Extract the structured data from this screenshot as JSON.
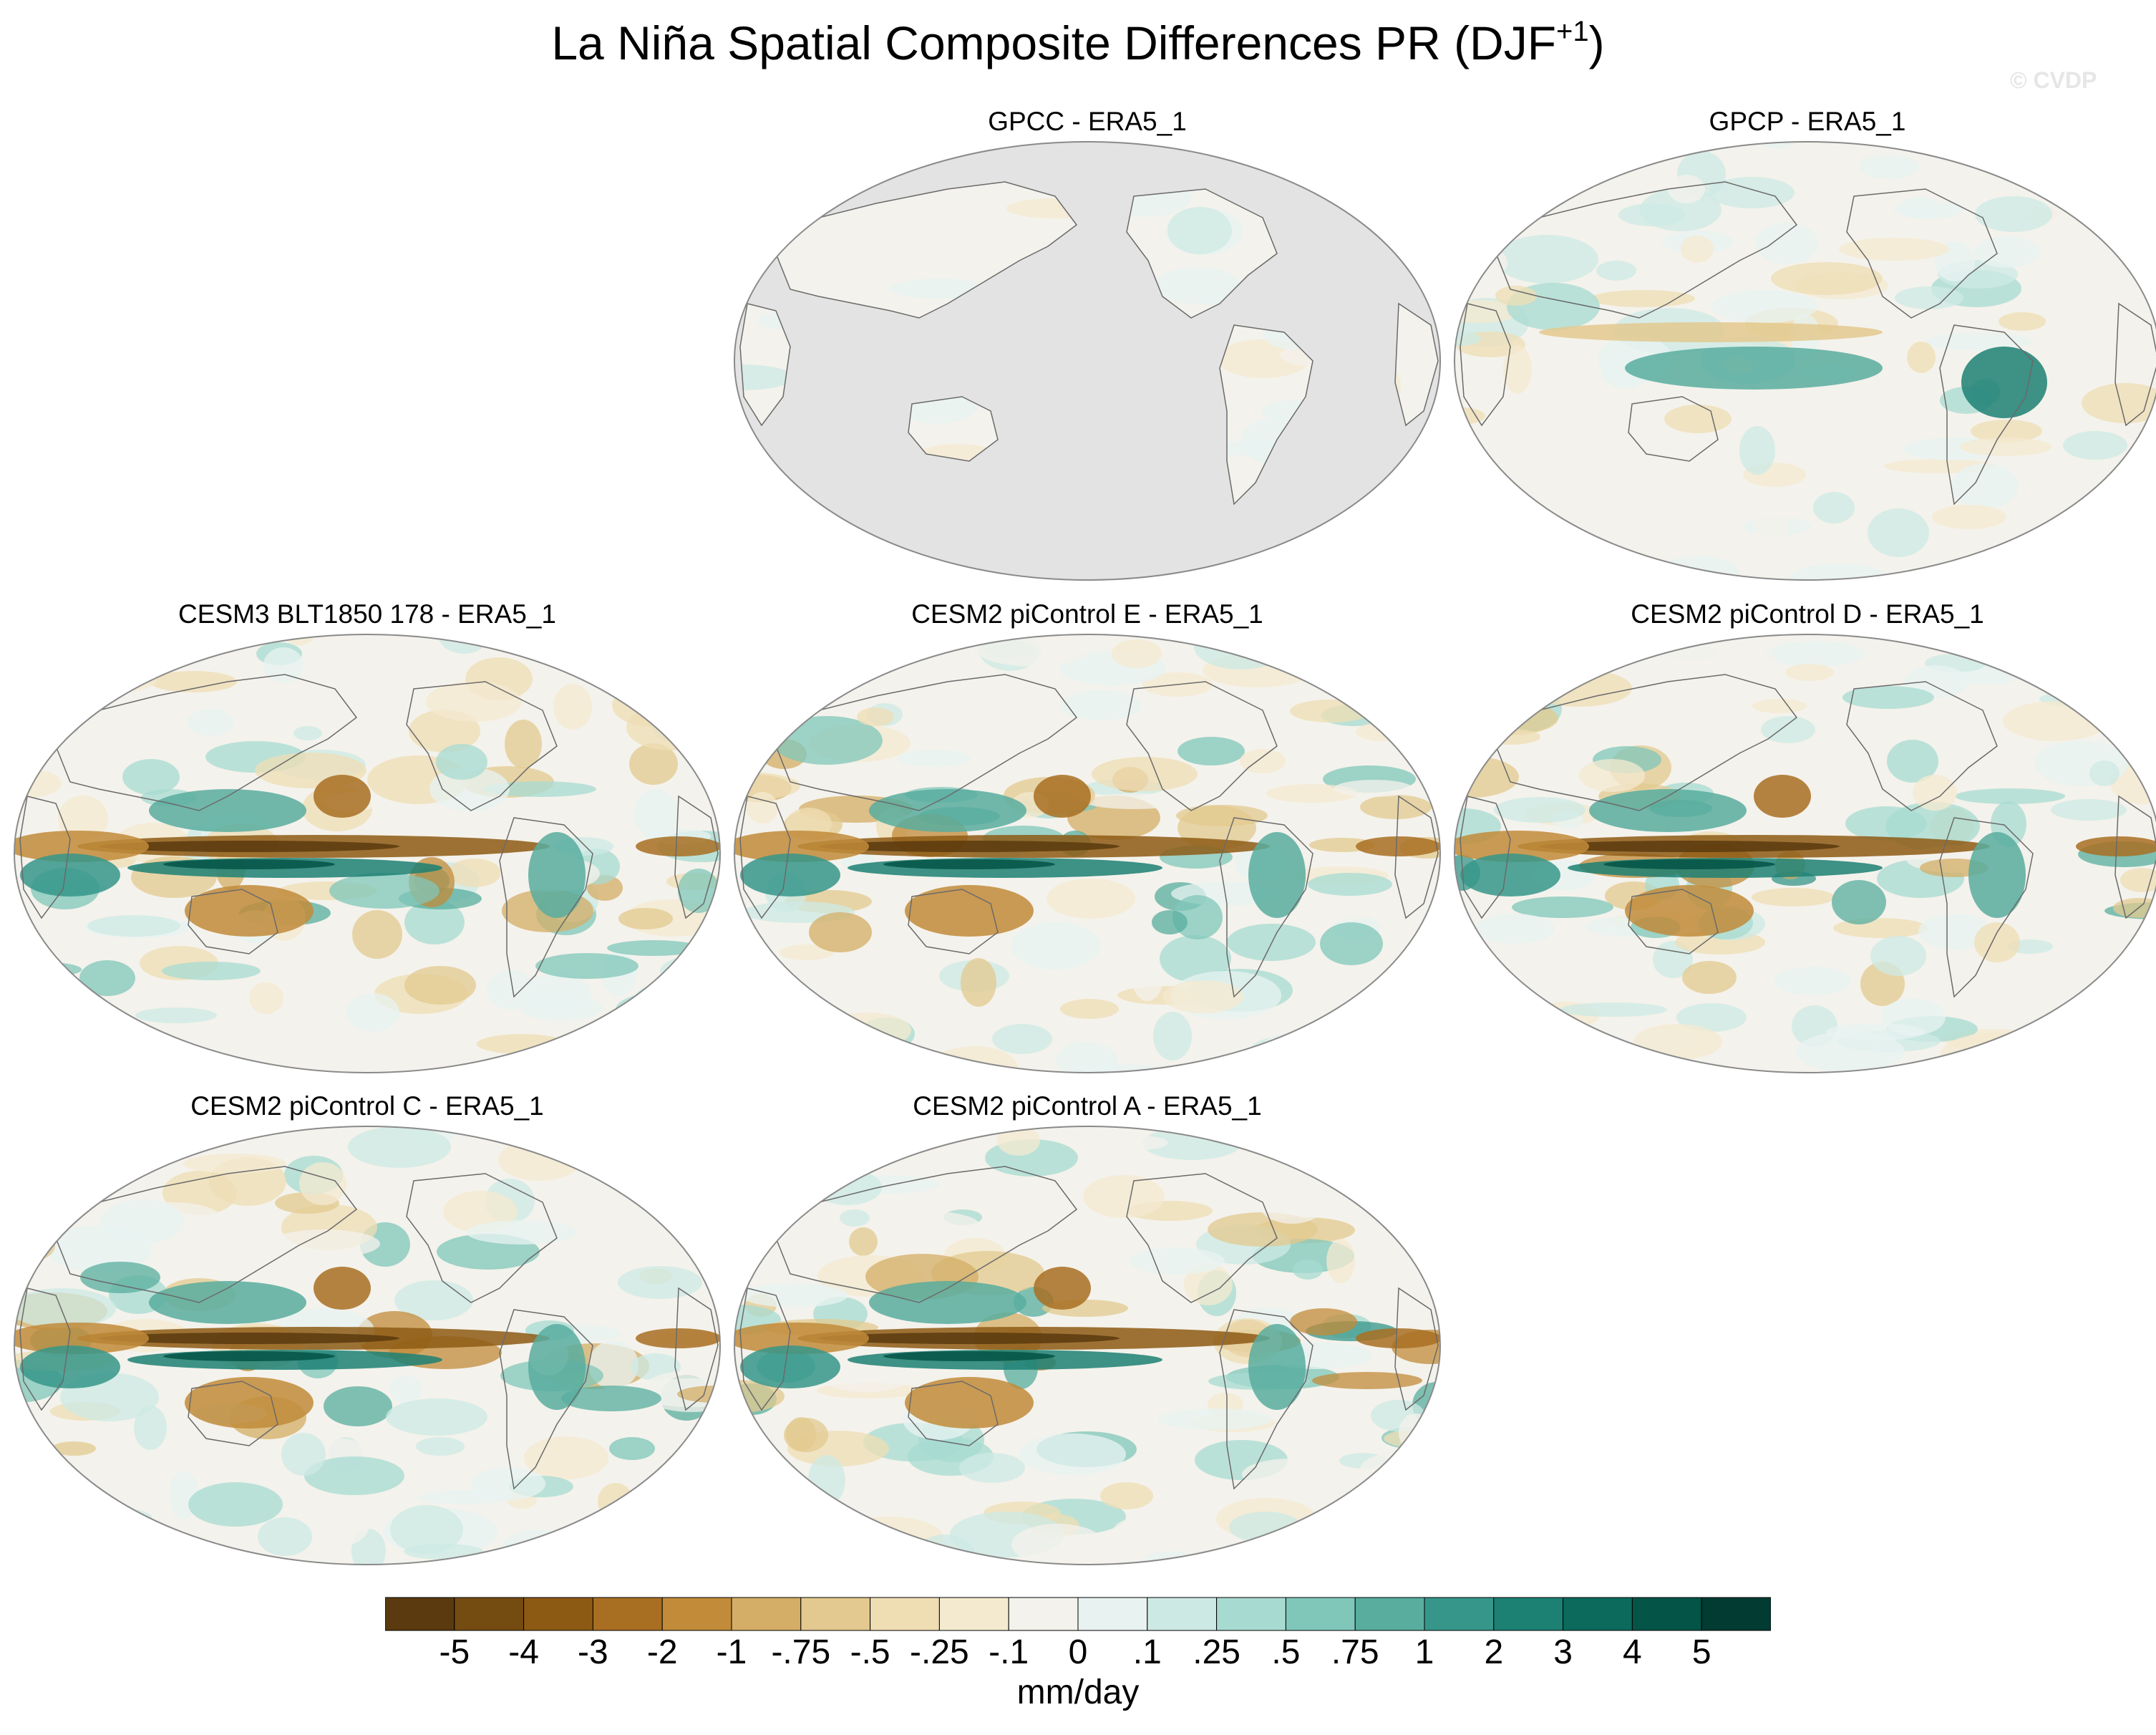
{
  "figure": {
    "title_main": "La Niña Spatial Composite Differences PR (DJF",
    "title_sup": "+1",
    "title_end": ")",
    "watermark": "© CVDP"
  },
  "panels": [
    {
      "title": "GPCC - ERA5_1",
      "land_only": true,
      "pattern": 0.35,
      "seed": 3
    },
    {
      "title": "GPCP - ERA5_1",
      "land_only": false,
      "pattern": 0.55,
      "seed": 7
    },
    {
      "title": "CESM3 BLT1850 178 - ERA5_1",
      "land_only": false,
      "pattern": 1.0,
      "seed": 11
    },
    {
      "title": "CESM2 piControl E - ERA5_1",
      "land_only": false,
      "pattern": 1.0,
      "seed": 17
    },
    {
      "title": "CESM2 piControl D - ERA5_1",
      "land_only": false,
      "pattern": 1.0,
      "seed": 23
    },
    {
      "title": "CESM2 piControl C - ERA5_1",
      "land_only": false,
      "pattern": 1.0,
      "seed": 29
    },
    {
      "title": "CESM2 piControl A - ERA5_1",
      "land_only": false,
      "pattern": 1.0,
      "seed": 31
    }
  ],
  "colorbar": {
    "units": "mm/day",
    "labels": [
      "-5",
      "-4",
      "-3",
      "-2",
      "-1",
      "-.75",
      "-.5",
      "-.25",
      "-.1",
      "0",
      ".1",
      ".25",
      ".5",
      ".75",
      "1",
      "2",
      "3",
      "4",
      "5"
    ],
    "colors": [
      "#5a3a0e",
      "#744b11",
      "#8d5a14",
      "#a86e22",
      "#c18b3a",
      "#d4ad66",
      "#e3c98f",
      "#efddb4",
      "#f4ead0",
      "#f4f2ec",
      "#e8f3f1",
      "#cde9e4",
      "#a7dbd1",
      "#80c7ba",
      "#58ad9f",
      "#36968a",
      "#1c8073",
      "#0b6a5c",
      "#045447",
      "#013b31"
    ]
  }
}
